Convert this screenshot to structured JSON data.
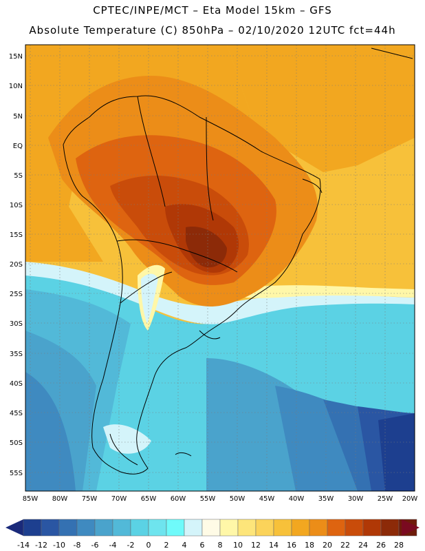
{
  "header": {
    "line1": "CPTEC/INPE/MCT –  Eta Model 15km – GFS",
    "line2": "Absolute Temperature (C) 850hPa – 02/10/2020 12UTC fct=44h"
  },
  "axes": {
    "lat_labels": [
      "15N",
      "10N",
      "5N",
      "EQ",
      "5S",
      "10S",
      "15S",
      "20S",
      "25S",
      "30S",
      "35S",
      "40S",
      "45S",
      "50S",
      "55S"
    ],
    "lon_labels": [
      "85W",
      "80W",
      "75W",
      "70W",
      "65W",
      "60W",
      "55W",
      "50W",
      "45W",
      "40W",
      "35W",
      "30W",
      "25W",
      "20W"
    ]
  },
  "colorbar": {
    "labels": [
      "-14",
      "-12",
      "-10",
      "-8",
      "-6",
      "-4",
      "-2",
      "0",
      "2",
      "4",
      "6",
      "8",
      "10",
      "12",
      "14",
      "16",
      "18",
      "20",
      "22",
      "24",
      "26",
      "28"
    ],
    "colors": [
      "#1d3f8f",
      "#2a56a3",
      "#3471b2",
      "#3f8ac0",
      "#4aa3cc",
      "#52b9d8",
      "#5bd2e4",
      "#6ee4ee",
      "#6ffafa",
      "#d4f4fa",
      "#fffbe6",
      "#fff7a8",
      "#fde57a",
      "#fbd35a",
      "#f7c13a",
      "#f2a720",
      "#ec8d18",
      "#de6410",
      "#c94c0a",
      "#b03806",
      "#8c2a08",
      "#6e1b0a"
    ],
    "low_arrow_color": "#1a2a7a",
    "high_arrow_color": "#7a0a20"
  }
}
